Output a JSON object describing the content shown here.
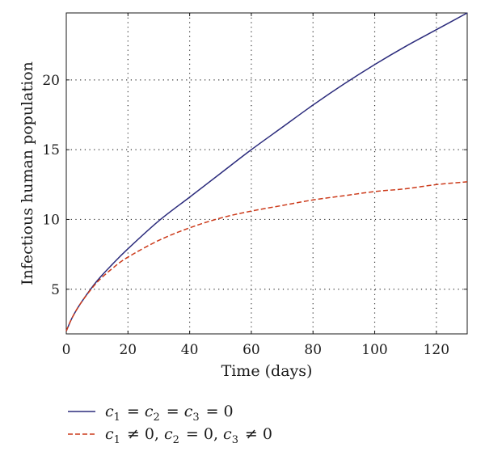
{
  "chart_data": {
    "type": "line",
    "xlabel": "Time (days)",
    "ylabel": "Infectious human population",
    "xlim": [
      0,
      130
    ],
    "ylim": [
      1.8,
      24.8
    ],
    "xticks": [
      0,
      20,
      40,
      60,
      80,
      100,
      120
    ],
    "yticks": [
      5,
      10,
      15,
      20
    ],
    "grid": true,
    "legend_position": "bottom-left",
    "series": [
      {
        "name": "c1 = c2 = c3 = 0",
        "name_parts": [
          {
            "t": "c",
            "s": "1"
          },
          {
            "t": " = "
          },
          {
            "t": "c",
            "s": "2"
          },
          {
            "t": " = "
          },
          {
            "t": "c",
            "s": "3"
          },
          {
            "t": " = 0"
          }
        ],
        "color": "#2b2b7c",
        "style": "solid",
        "x": [
          0,
          2,
          5,
          10,
          15,
          20,
          30,
          40,
          50,
          60,
          70,
          80,
          90,
          100,
          110,
          120,
          130
        ],
        "y": [
          2.0,
          3.0,
          4.1,
          5.6,
          6.8,
          7.9,
          9.9,
          11.6,
          13.3,
          15.0,
          16.6,
          18.2,
          19.7,
          21.1,
          22.4,
          23.6,
          24.8
        ]
      },
      {
        "name": "c1 ≠ 0, c2 = 0, c3 ≠ 0",
        "name_parts": [
          {
            "t": "c",
            "s": "1"
          },
          {
            "t": " ≠ 0, "
          },
          {
            "t": "c",
            "s": "2"
          },
          {
            "t": " = 0, "
          },
          {
            "t": "c",
            "s": "3"
          },
          {
            "t": " ≠ 0"
          }
        ],
        "color": "#cc3a1a",
        "style": "dashed",
        "x": [
          0,
          2,
          5,
          10,
          15,
          20,
          30,
          40,
          50,
          60,
          70,
          80,
          90,
          100,
          110,
          120,
          130
        ],
        "y": [
          2.0,
          3.0,
          4.1,
          5.5,
          6.5,
          7.3,
          8.5,
          9.4,
          10.1,
          10.6,
          11.0,
          11.4,
          11.7,
          12.0,
          12.2,
          12.5,
          12.7
        ]
      }
    ]
  }
}
